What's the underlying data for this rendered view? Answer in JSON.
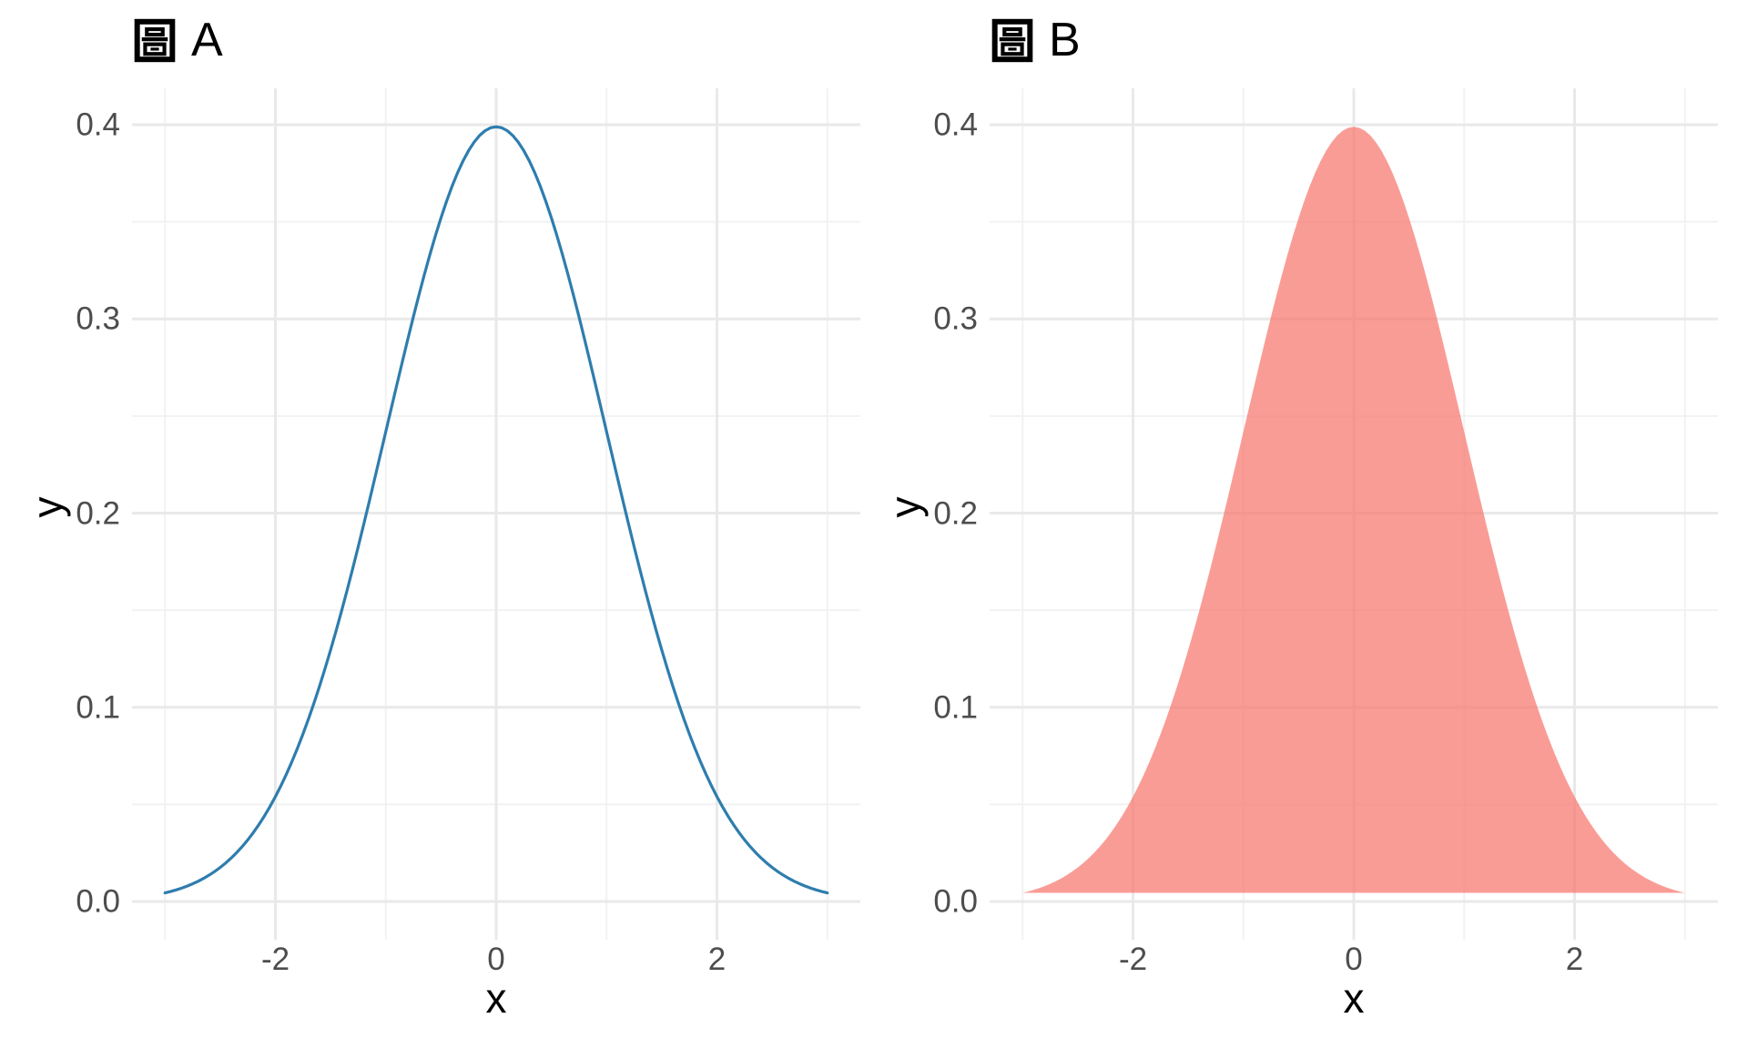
{
  "figure": {
    "background": "#FFFFFF",
    "grid_major_color": "#E9E9E9",
    "grid_minor_color": "#F2F2F2",
    "tick_label_color": "#4D4D4D",
    "title_color": "#000000"
  },
  "panels": [
    {
      "title": "圖 A",
      "title_cjk": "圖",
      "title_letter": "A",
      "xlabel": "x",
      "ylabel": "y",
      "x_ticks": [
        {
          "value": -2,
          "label": "-2"
        },
        {
          "value": 0,
          "label": "0"
        },
        {
          "value": 2,
          "label": "2"
        }
      ],
      "y_ticks": [
        {
          "value": 0.0,
          "label": "0.0"
        },
        {
          "value": 0.1,
          "label": "0.1"
        },
        {
          "value": 0.2,
          "label": "0.2"
        },
        {
          "value": 0.3,
          "label": "0.3"
        },
        {
          "value": 0.4,
          "label": "0.4"
        }
      ],
      "x_minor": [
        -3,
        -1,
        1,
        3
      ],
      "y_minor": [
        0.05,
        0.15,
        0.25,
        0.35
      ]
    },
    {
      "title": "圖 B",
      "title_cjk": "圖",
      "title_letter": "B",
      "xlabel": "x",
      "ylabel": "y",
      "x_ticks": [
        {
          "value": -2,
          "label": "-2"
        },
        {
          "value": 0,
          "label": "0"
        },
        {
          "value": 2,
          "label": "2"
        }
      ],
      "y_ticks": [
        {
          "value": 0.0,
          "label": "0.0"
        },
        {
          "value": 0.1,
          "label": "0.1"
        },
        {
          "value": 0.2,
          "label": "0.2"
        },
        {
          "value": 0.3,
          "label": "0.3"
        },
        {
          "value": 0.4,
          "label": "0.4"
        }
      ],
      "x_minor": [
        -3,
        -1,
        1,
        3
      ],
      "y_minor": [
        0.05,
        0.15,
        0.25,
        0.35
      ]
    }
  ],
  "chart_data": [
    {
      "type": "line",
      "title": "圖 A",
      "xlabel": "x",
      "ylabel": "y",
      "function": "normal_pdf",
      "mean": 0,
      "sd": 1,
      "x_range": [
        -3,
        3
      ],
      "xlim": [
        -3.3,
        3.3
      ],
      "ylim": [
        -0.02,
        0.419
      ],
      "x_ticks": [
        -2,
        0,
        2
      ],
      "y_ticks": [
        0.0,
        0.1,
        0.2,
        0.3,
        0.4
      ],
      "grid": true,
      "legend": false,
      "line_color": "#2E7DAE",
      "line_width": 3.2,
      "fill": false,
      "sample_points": [
        {
          "x": -3,
          "y": 0.0044
        },
        {
          "x": -2,
          "y": 0.054
        },
        {
          "x": -1,
          "y": 0.242
        },
        {
          "x": 0,
          "y": 0.3989
        },
        {
          "x": 1,
          "y": 0.242
        },
        {
          "x": 2,
          "y": 0.054
        },
        {
          "x": 3,
          "y": 0.0044
        }
      ]
    },
    {
      "type": "area",
      "title": "圖 B",
      "xlabel": "x",
      "ylabel": "y",
      "function": "normal_pdf",
      "mean": 0,
      "sd": 1,
      "x_range": [
        -3,
        3
      ],
      "xlim": [
        -3.3,
        3.3
      ],
      "ylim": [
        -0.02,
        0.419
      ],
      "x_ticks": [
        -2,
        0,
        2
      ],
      "y_ticks": [
        0.0,
        0.1,
        0.2,
        0.3,
        0.4
      ],
      "grid": true,
      "legend": false,
      "fill_color": "#F8766D",
      "fill_opacity": 0.72,
      "rendered_fill_on_white": "#F4A199",
      "stroke": "none",
      "sample_points": [
        {
          "x": -3,
          "y": 0.0044
        },
        {
          "x": -2,
          "y": 0.054
        },
        {
          "x": -1,
          "y": 0.242
        },
        {
          "x": 0,
          "y": 0.3989
        },
        {
          "x": 1,
          "y": 0.242
        },
        {
          "x": 2,
          "y": 0.054
        },
        {
          "x": 3,
          "y": 0.0044
        }
      ]
    }
  ]
}
